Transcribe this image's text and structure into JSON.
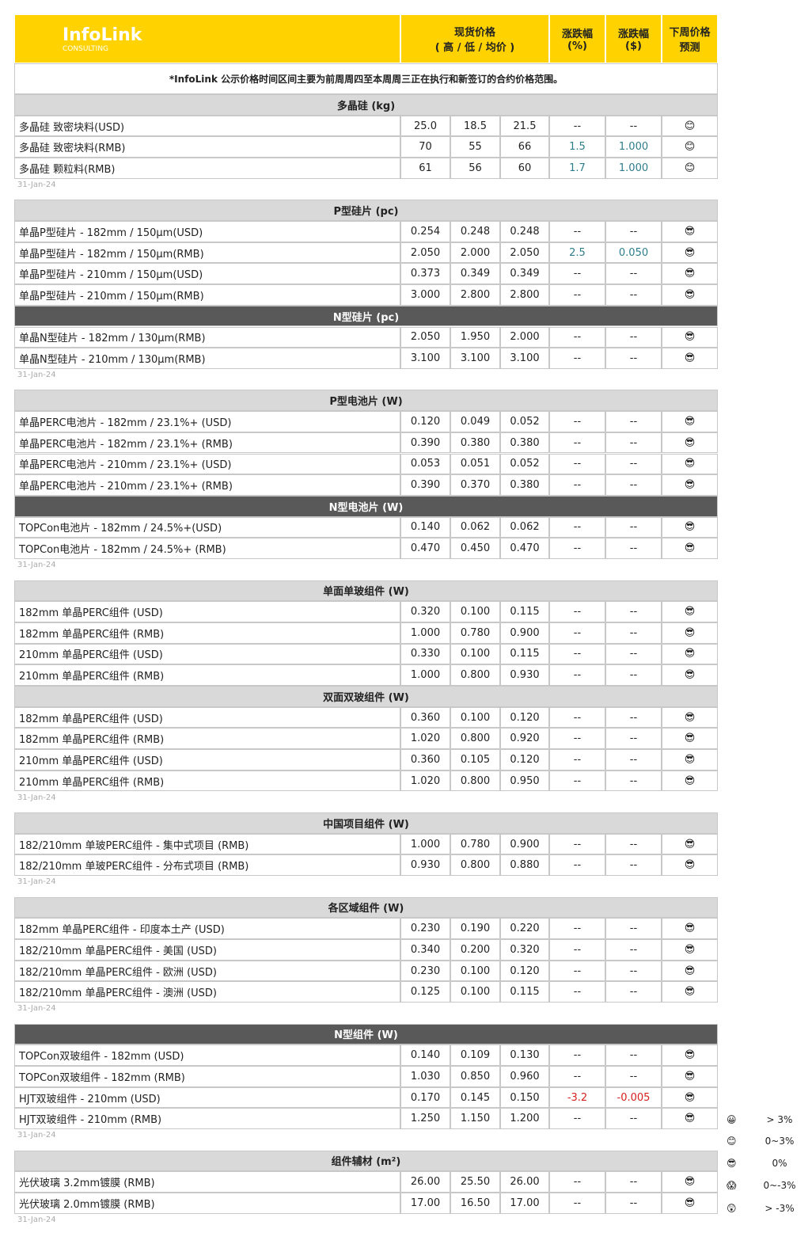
{
  "header": {
    "logo": "InfoLink",
    "logo_sub": "CONSULTING",
    "price": "现货价格",
    "price_sub": "( 高 / 低 / 均价 )",
    "pct": "涨跌幅",
    "pct_unit": "(%)",
    "usd": "涨跌幅",
    "usd_unit": "($)",
    "forecast": "下周价格预测"
  },
  "note": "*InfoLink 公示价格时间区间主要为前周周四至本周周三正在执行和新签订的合约价格范围。",
  "groups": [
    {
      "sections": [
        {
          "title": "多晶硅 (kg)",
          "dark": false,
          "rows": [
            {
              "name": "多晶硅 致密块料(USD)",
              "high": "25.0",
              "low": "18.5",
              "avg": "21.5",
              "pct": "--",
              "usd": "--",
              "forecast": "😊"
            },
            {
              "name": "多晶硅 致密块料(RMB)",
              "high": "70",
              "low": "55",
              "avg": "66",
              "pct": "1.5",
              "usd": "1.000",
              "forecast": "😊"
            },
            {
              "name": "多晶硅 颗粒料(RMB)",
              "high": "61",
              "low": "56",
              "avg": "60",
              "pct": "1.7",
              "usd": "1.000",
              "forecast": "😊"
            }
          ]
        }
      ],
      "date": "31-Jan-24"
    },
    {
      "sections": [
        {
          "title": "P型硅片 (pc)",
          "dark": false,
          "rows": [
            {
              "name": "单晶P型硅片 - 182mm / 150μm(USD)",
              "high": "0.254",
              "low": "0.248",
              "avg": "0.248",
              "pct": "--",
              "usd": "--",
              "forecast": "😎"
            },
            {
              "name": "单晶P型硅片 - 182mm / 150μm(RMB)",
              "high": "2.050",
              "low": "2.000",
              "avg": "2.050",
              "pct": "2.5",
              "usd": "0.050",
              "forecast": "😎"
            },
            {
              "name": "单晶P型硅片 - 210mm / 150μm(USD)",
              "high": "0.373",
              "low": "0.349",
              "avg": "0.349",
              "pct": "--",
              "usd": "--",
              "forecast": "😎"
            },
            {
              "name": "单晶P型硅片 - 210mm / 150μm(RMB)",
              "high": "3.000",
              "low": "2.800",
              "avg": "2.800",
              "pct": "--",
              "usd": "--",
              "forecast": "😎"
            }
          ]
        },
        {
          "title": "N型硅片 (pc)",
          "dark": true,
          "rows": [
            {
              "name": "单晶N型硅片 - 182mm / 130μm(RMB)",
              "high": "2.050",
              "low": "1.950",
              "avg": "2.000",
              "pct": "--",
              "usd": "--",
              "forecast": "😎"
            },
            {
              "name": "单晶N型硅片 - 210mm / 130μm(RMB)",
              "high": "3.100",
              "low": "3.100",
              "avg": "3.100",
              "pct": "--",
              "usd": "--",
              "forecast": "😎"
            }
          ]
        }
      ],
      "date": "31-Jan-24"
    },
    {
      "sections": [
        {
          "title": "P型电池片 (W)",
          "dark": false,
          "rows": [
            {
              "name": "单晶PERC电池片 - 182mm / 23.1%+ (USD)",
              "high": "0.120",
              "low": "0.049",
              "avg": "0.052",
              "pct": "--",
              "usd": "--",
              "forecast": "😎"
            },
            {
              "name": "单晶PERC电池片 - 182mm / 23.1%+ (RMB)",
              "high": "0.390",
              "low": "0.380",
              "avg": "0.380",
              "pct": "--",
              "usd": "--",
              "forecast": "😎"
            },
            {
              "name": "单晶PERC电池片 - 210mm / 23.1%+ (USD)",
              "high": "0.053",
              "low": "0.051",
              "avg": "0.052",
              "pct": "--",
              "usd": "--",
              "forecast": "😎"
            },
            {
              "name": "单晶PERC电池片 - 210mm / 23.1%+ (RMB)",
              "high": "0.390",
              "low": "0.370",
              "avg": "0.380",
              "pct": "--",
              "usd": "--",
              "forecast": "😎"
            }
          ]
        },
        {
          "title": "N型电池片 (W)",
          "dark": true,
          "rows": [
            {
              "name": "TOPCon电池片 - 182mm / 24.5%+(USD)",
              "high": "0.140",
              "low": "0.062",
              "avg": "0.062",
              "pct": "--",
              "usd": "--",
              "forecast": "😎"
            },
            {
              "name": "TOPCon电池片 - 182mm / 24.5%+ (RMB)",
              "high": "0.470",
              "low": "0.450",
              "avg": "0.470",
              "pct": "--",
              "usd": "--",
              "forecast": "😎"
            }
          ]
        }
      ],
      "date": "31-Jan-24"
    },
    {
      "sections": [
        {
          "title": "单面单玻组件 (W)",
          "dark": false,
          "rows": [
            {
              "name": "182mm 单晶PERC组件 (USD)",
              "high": "0.320",
              "low": "0.100",
              "avg": "0.115",
              "pct": "--",
              "usd": "--",
              "forecast": "😎"
            },
            {
              "name": "182mm 单晶PERC组件 (RMB)",
              "high": "1.000",
              "low": "0.780",
              "avg": "0.900",
              "pct": "--",
              "usd": "--",
              "forecast": "😎"
            },
            {
              "name": "210mm 单晶PERC组件 (USD)",
              "high": "0.330",
              "low": "0.100",
              "avg": "0.115",
              "pct": "--",
              "usd": "--",
              "forecast": "😎"
            },
            {
              "name": "210mm 单晶PERC组件 (RMB)",
              "high": "1.000",
              "low": "0.800",
              "avg": "0.930",
              "pct": "--",
              "usd": "--",
              "forecast": "😎"
            }
          ]
        },
        {
          "title": "双面双玻组件 (W)",
          "dark": false,
          "rows": [
            {
              "name": "182mm 单晶PERC组件 (USD)",
              "high": "0.360",
              "low": "0.100",
              "avg": "0.120",
              "pct": "--",
              "usd": "--",
              "forecast": "😎"
            },
            {
              "name": "182mm 单晶PERC组件 (RMB)",
              "high": "1.020",
              "low": "0.800",
              "avg": "0.920",
              "pct": "--",
              "usd": "--",
              "forecast": "😎"
            },
            {
              "name": "210mm 单晶PERC组件 (USD)",
              "high": "0.360",
              "low": "0.105",
              "avg": "0.120",
              "pct": "--",
              "usd": "--",
              "forecast": "😎"
            },
            {
              "name": "210mm 单晶PERC组件 (RMB)",
              "high": "1.020",
              "low": "0.800",
              "avg": "0.950",
              "pct": "--",
              "usd": "--",
              "forecast": "😎"
            }
          ]
        }
      ],
      "date": "31-Jan-24"
    },
    {
      "sections": [
        {
          "title": "中国项目组件 (W)",
          "dark": false,
          "rows": [
            {
              "name": "182/210mm 单玻PERC组件 - 集中式项目 (RMB)",
              "high": "1.000",
              "low": "0.780",
              "avg": "0.900",
              "pct": "--",
              "usd": "--",
              "forecast": "😎"
            },
            {
              "name": "182/210mm 单玻PERC组件 - 分布式项目 (RMB)",
              "high": "0.930",
              "low": "0.800",
              "avg": "0.880",
              "pct": "--",
              "usd": "--",
              "forecast": "😎"
            }
          ]
        }
      ],
      "date": "31-Jan-24"
    },
    {
      "sections": [
        {
          "title": "各区域组件 (W)",
          "dark": false,
          "rows": [
            {
              "name": "182mm 单晶PERC组件 - 印度本土产 (USD)",
              "high": "0.230",
              "low": "0.190",
              "avg": "0.220",
              "pct": "--",
              "usd": "--",
              "forecast": "😎"
            },
            {
              "name": "182/210mm 单晶PERC组件 - 美国 (USD)",
              "high": "0.340",
              "low": "0.200",
              "avg": "0.320",
              "pct": "--",
              "usd": "--",
              "forecast": "😎"
            },
            {
              "name": "182/210mm 单晶PERC组件 - 欧洲 (USD)",
              "high": "0.230",
              "low": "0.100",
              "avg": "0.120",
              "pct": "--",
              "usd": "--",
              "forecast": "😎"
            },
            {
              "name": "182/210mm 单晶PERC组件 - 澳洲 (USD)",
              "high": "0.125",
              "low": "0.100",
              "avg": "0.115",
              "pct": "--",
              "usd": "--",
              "forecast": "😎"
            }
          ]
        }
      ],
      "date": "31-Jan-24"
    },
    {
      "sections": [
        {
          "title": "N型组件 (W)",
          "dark": true,
          "rows": [
            {
              "name": "TOPCon双玻组件 - 182mm (USD)",
              "high": "0.140",
              "low": "0.109",
              "avg": "0.130",
              "pct": "--",
              "usd": "--",
              "forecast": "😎"
            },
            {
              "name": "TOPCon双玻组件 - 182mm (RMB)",
              "high": "1.030",
              "low": "0.850",
              "avg": "0.960",
              "pct": "--",
              "usd": "--",
              "forecast": "😎"
            },
            {
              "name": "HJT双玻组件 - 210mm (USD)",
              "high": "0.170",
              "low": "0.145",
              "avg": "0.150",
              "pct": "-3.2",
              "usd": "-0.005",
              "forecast": "😎"
            },
            {
              "name": "HJT双玻组件 - 210mm (RMB)",
              "high": "1.250",
              "low": "1.150",
              "avg": "1.200",
              "pct": "--",
              "usd": "--",
              "forecast": "😎"
            }
          ]
        }
      ],
      "date": "31-Jan-24"
    },
    {
      "sections": [
        {
          "title": "组件辅材 (m²)",
          "dark": false,
          "rows": [
            {
              "name": "光伏玻璃 3.2mm镀膜 (RMB)",
              "high": "26.00",
              "low": "25.50",
              "avg": "26.00",
              "pct": "--",
              "usd": "--",
              "forecast": "😎"
            },
            {
              "name": "光伏玻璃 2.0mm镀膜 (RMB)",
              "high": "17.00",
              "low": "16.50",
              "avg": "17.00",
              "pct": "--",
              "usd": "--",
              "forecast": "😎"
            }
          ]
        }
      ],
      "date": "31-Jan-24"
    }
  ],
  "legend": [
    {
      "icon": "😀",
      "label": "> 3%"
    },
    {
      "icon": "😊",
      "label": "0~3%"
    },
    {
      "icon": "😎",
      "label": "0%"
    },
    {
      "icon": "😱",
      "label": "0~-3%"
    },
    {
      "icon": "😲",
      "label": "> -3%"
    }
  ]
}
